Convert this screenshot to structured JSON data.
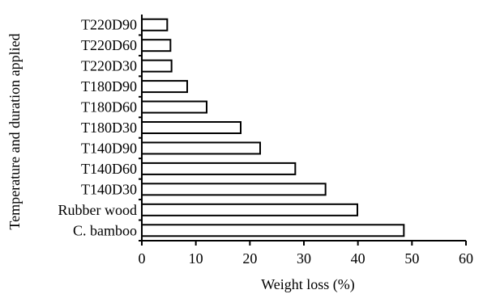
{
  "chart_data": {
    "type": "bar",
    "orientation": "horizontal",
    "categories": [
      "C. bamboo",
      "Rubber wood",
      "T140D30",
      "T140D60",
      "T140D90",
      "T180D30",
      "T180D60",
      "T180D90",
      "T220D30",
      "T220D60",
      "T220D90"
    ],
    "values": [
      48.5,
      39.9,
      34.0,
      28.4,
      21.9,
      18.3,
      12.0,
      8.4,
      5.5,
      5.3,
      4.7
    ],
    "xlabel": "Weight loss (%)",
    "ylabel": "Temperature and duration applied",
    "xlim": [
      0,
      60
    ],
    "xticks": [
      "0",
      "10",
      "20",
      "30",
      "40",
      "50",
      "60"
    ],
    "grid": false,
    "legend": "none",
    "bar_fill": "#ffffff",
    "bar_stroke": "#000000"
  }
}
